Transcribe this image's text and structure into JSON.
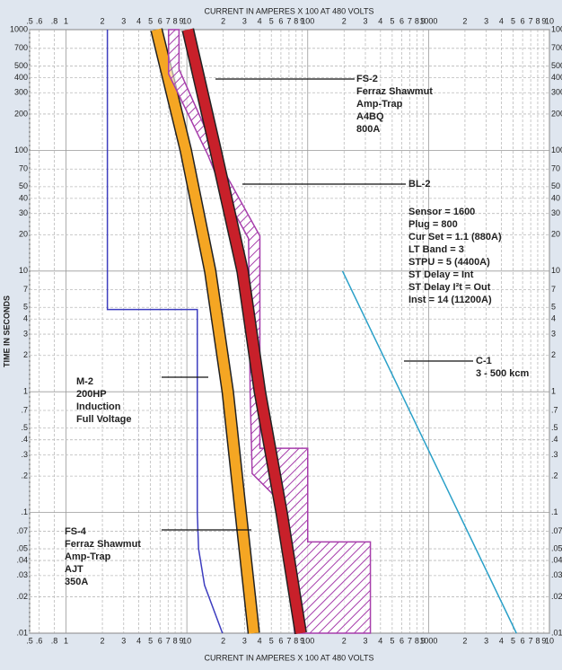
{
  "chart_data": {
    "type": "line",
    "x_label": "CURRENT IN AMPERES X 100 AT 480 VOLTS",
    "y_label": "TIME IN SECONDS",
    "xlog": true,
    "ylog": true,
    "grid": true,
    "xlim": [
      0.5,
      10000
    ],
    "ylim": [
      0.01,
      1000
    ],
    "xticks": [
      {
        "value": 0.5,
        "label": ".5"
      },
      {
        "value": 0.6,
        "label": ".6"
      },
      {
        "value": 0.8,
        "label": ".8"
      },
      1,
      2,
      3,
      4,
      5,
      6,
      7,
      8,
      9,
      10,
      {
        "value": 20,
        "label": "2"
      },
      {
        "value": 30,
        "label": "3"
      },
      {
        "value": 40,
        "label": "4"
      },
      {
        "value": 50,
        "label": "5"
      },
      {
        "value": 60,
        "label": "6"
      },
      {
        "value": 70,
        "label": "7"
      },
      {
        "value": 80,
        "label": "8"
      },
      {
        "value": 90,
        "label": "9"
      },
      100,
      {
        "value": 200,
        "label": "2"
      },
      {
        "value": 300,
        "label": "3"
      },
      {
        "value": 400,
        "label": "4"
      },
      {
        "value": 500,
        "label": "5"
      },
      {
        "value": 600,
        "label": "6"
      },
      {
        "value": 700,
        "label": "7"
      },
      {
        "value": 800,
        "label": "8"
      },
      {
        "value": 900,
        "label": "9"
      },
      1000,
      {
        "value": 2000,
        "label": "2"
      },
      {
        "value": 3000,
        "label": "3"
      },
      {
        "value": 4000,
        "label": "4"
      },
      {
        "value": 5000,
        "label": "5"
      },
      {
        "value": 6000,
        "label": "6"
      },
      {
        "value": 7000,
        "label": "7"
      },
      {
        "value": 8000,
        "label": "8"
      },
      {
        "value": 9000,
        "label": "9"
      },
      {
        "value": 10000,
        "label": "10"
      }
    ],
    "yticks": [
      1000,
      700,
      500,
      400,
      300,
      200,
      100,
      70,
      50,
      40,
      30,
      20,
      10,
      7,
      5,
      4,
      3,
      2,
      1,
      {
        "value": 0.7,
        "label": ".7"
      },
      {
        "value": 0.5,
        "label": ".5"
      },
      {
        "value": 0.4,
        "label": ".4"
      },
      {
        "value": 0.3,
        "label": ".3"
      },
      {
        "value": 0.2,
        "label": ".2"
      },
      {
        "value": 0.1,
        "label": ".1"
      },
      {
        "value": 0.07,
        "label": ".07"
      },
      {
        "value": 0.05,
        "label": ".05"
      },
      {
        "value": 0.04,
        "label": ".04"
      },
      {
        "value": 0.03,
        "label": ".03"
      },
      {
        "value": 0.02,
        "label": ".02"
      },
      {
        "value": 0.01,
        "label": ".01"
      }
    ],
    "series": [
      {
        "shape": "line",
        "color": "#3d3dbf",
        "x": [
          2.2,
          2.2,
          12.2,
          12.2,
          12.5,
          14,
          19.7
        ],
        "values": [
          1000,
          4.8,
          4.8,
          0.1,
          0.05,
          0.025,
          0.01
        ]
      },
      {
        "shape": "band",
        "color": "#f5a623",
        "x": [
          5.6,
          9.8,
          15.6,
          21.8,
          27.9,
          35.8
        ],
        "values": [
          1000,
          100,
          10,
          1,
          0.1,
          0.01
        ]
      },
      {
        "shape": "region",
        "color": "#a63dab",
        "x": [
          7.06,
          8.61,
          8.61,
          20.7,
          40.2,
          40.2,
          100,
          100,
          330,
          330,
          78,
          66,
          60.8,
          34.7,
          33.4,
          32.4,
          19.7,
          14.9,
          7.06
        ],
        "values": [
          1000,
          1000,
          470,
          65,
          19.5,
          0.34,
          0.34,
          0.057,
          0.057,
          0.01,
          0.01,
          0.057,
          0.12,
          0.21,
          0.97,
          18.6,
          46,
          92,
          430
        ]
      },
      {
        "shape": "band",
        "color": "#c8202a",
        "x": [
          10.2,
          17.3,
          28.9,
          40.2,
          60.8,
          87.6
        ],
        "values": [
          1000,
          100,
          10,
          1,
          0.1,
          0.01
        ]
      },
      {
        "shape": "line",
        "color": "#2aa0c8",
        "x": [
          194,
          5330
        ],
        "values": [
          10,
          0.01
        ]
      }
    ],
    "annotations": [
      {
        "lines": [
          "FS-2",
          "Ferraz Shawmut",
          "Amp-Trap",
          "A4BQ",
          "800A"
        ]
      },
      {
        "lines": [
          "BL-2"
        ]
      },
      {
        "lines": [
          "Sensor = 1600",
          "Plug = 800",
          "Cur Set = 1.1 (880A)",
          "LT Band = 3",
          "STPU = 5 (4400A)",
          "ST Delay = Int",
          "ST Delay I²t = Out",
          "Inst = 14 (11200A)"
        ]
      },
      {
        "lines": [
          "C-1",
          "3 - 500 kcm"
        ]
      },
      {
        "lines": [
          "M-2",
          "200HP",
          "Induction",
          "Full Voltage"
        ]
      },
      {
        "lines": [
          "FS-4",
          "Ferraz Shawmut",
          "Amp-Trap",
          "AJT",
          "350A"
        ]
      }
    ]
  }
}
